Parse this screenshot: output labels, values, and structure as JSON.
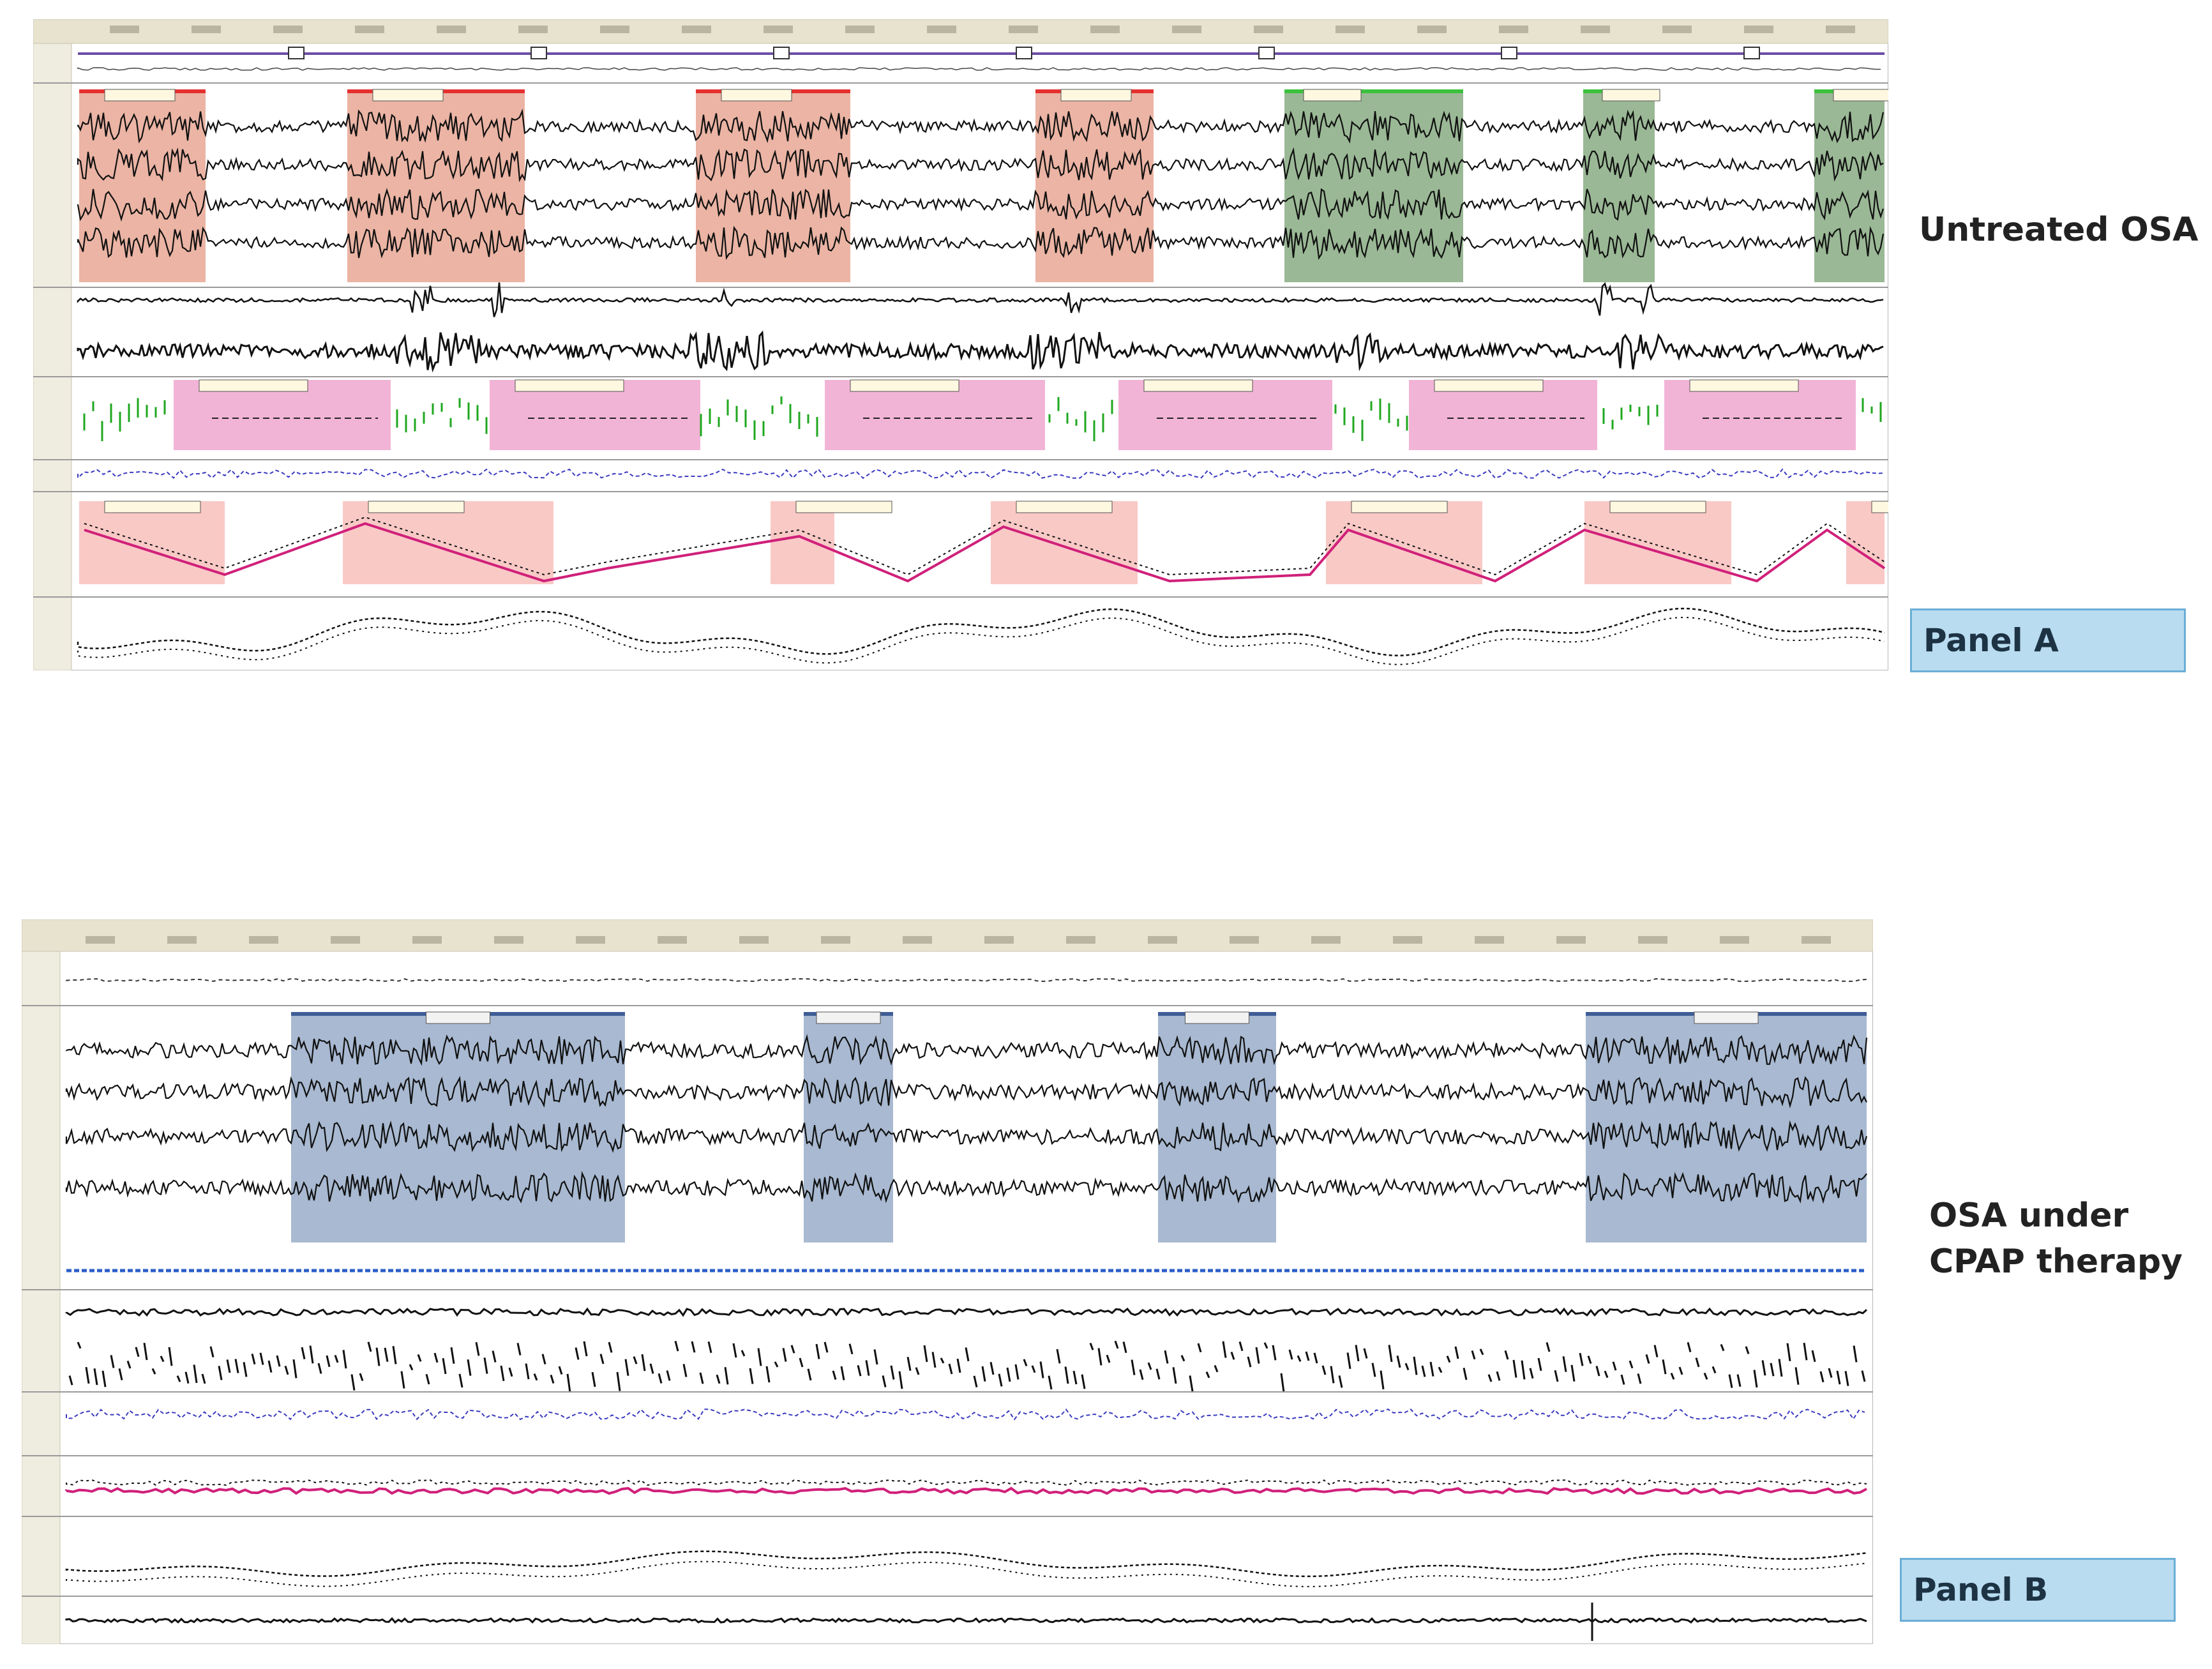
{
  "panel_a": {
    "caption": "Untreated OSA",
    "label": "Panel A",
    "colors": {
      "arousal": "#e8a794",
      "arousal_bar": "#e53030",
      "wake": "#8fb08a",
      "wake_bar": "#3cc23c",
      "apnea": "#f2b4d6",
      "desat": "#f9c9c6",
      "trace": "#111111",
      "effort": "#3a3ac0",
      "flow_dash": "#1fa71f",
      "spo2_line": "#d0207a",
      "hypnogram": "#6b4ea6"
    }
  },
  "panel_b": {
    "caption_line1": "OSA under",
    "caption_line2": "CPAP therapy",
    "label": "Panel B",
    "colors": {
      "arousal": "#9fb1cc",
      "arousal_bar": "#3f5d96",
      "trace": "#111111",
      "effort": "#3a3ac0",
      "flow_blue": "#2c5fc8",
      "spo2_line": "#d0207a"
    }
  }
}
